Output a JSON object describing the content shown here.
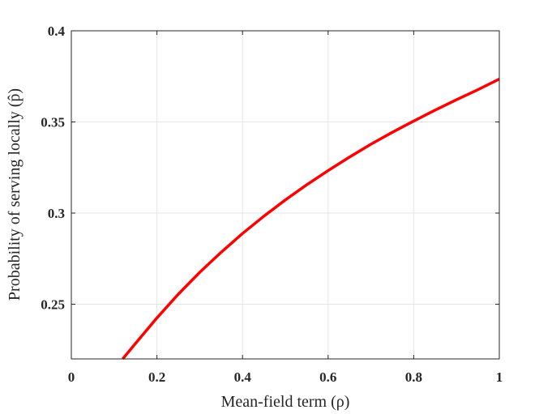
{
  "chart_data": {
    "type": "line",
    "title": "",
    "xlabel": "Mean-field term (ρ)",
    "ylabel": "Probability of serving locally (p̂)",
    "xlim": [
      0,
      1
    ],
    "ylim": [
      0.22,
      0.4
    ],
    "grid": true,
    "xticks": [
      0,
      0.2,
      0.4,
      0.6,
      0.8,
      1
    ],
    "xtick_labels": [
      "0",
      "0.2",
      "0.4",
      "0.6",
      "0.8",
      "1"
    ],
    "yticks": [
      0.25,
      0.3,
      0.35,
      0.4
    ],
    "ytick_labels": [
      "0.25",
      "0.3",
      "0.35",
      "0.4"
    ],
    "series": [
      {
        "color": "#ff0000",
        "x": [
          0.12,
          0.15,
          0.2,
          0.25,
          0.3,
          0.35,
          0.4,
          0.45,
          0.5,
          0.55,
          0.6,
          0.65,
          0.7,
          0.75,
          0.8,
          0.85,
          0.9,
          0.95,
          1.0
        ],
        "y": [
          0.22,
          0.2285,
          0.2425,
          0.2555,
          0.2675,
          0.2785,
          0.2888,
          0.2983,
          0.3072,
          0.3155,
          0.3233,
          0.3307,
          0.3378,
          0.3443,
          0.3505,
          0.3565,
          0.3622,
          0.3677,
          0.3735
        ]
      }
    ]
  }
}
